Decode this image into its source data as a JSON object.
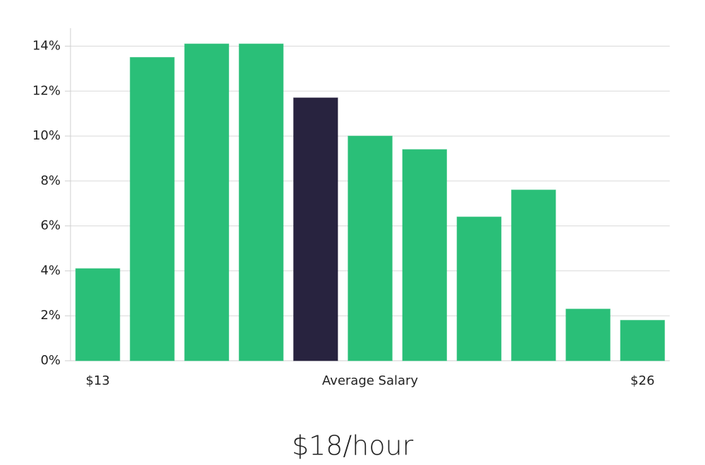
{
  "chart_data": {
    "type": "bar",
    "categories": [
      "$13",
      null,
      null,
      null,
      null,
      "Average Salary",
      null,
      null,
      null,
      null,
      "$26"
    ],
    "values": [
      4.1,
      13.5,
      14.1,
      14.1,
      11.7,
      10.0,
      9.4,
      6.4,
      7.6,
      2.3,
      1.8
    ],
    "colors": [
      "#2abf78",
      "#2abf78",
      "#2abf78",
      "#2abf78",
      "#28233f",
      "#2abf78",
      "#2abf78",
      "#2abf78",
      "#2abf78",
      "#2abf78",
      "#2abf78"
    ],
    "ylim": [
      0,
      14.8
    ],
    "yticks": [
      {
        "value": 0,
        "label": "0%"
      },
      {
        "value": 2,
        "label": "2%"
      },
      {
        "value": 4,
        "label": "4%"
      },
      {
        "value": 6,
        "label": "6%"
      },
      {
        "value": 8,
        "label": "8%"
      },
      {
        "value": 10,
        "label": "10%"
      },
      {
        "value": 12,
        "label": "12%"
      },
      {
        "value": 14,
        "label": "14%"
      }
    ],
    "grid": true,
    "annotation": "$18/hour"
  }
}
